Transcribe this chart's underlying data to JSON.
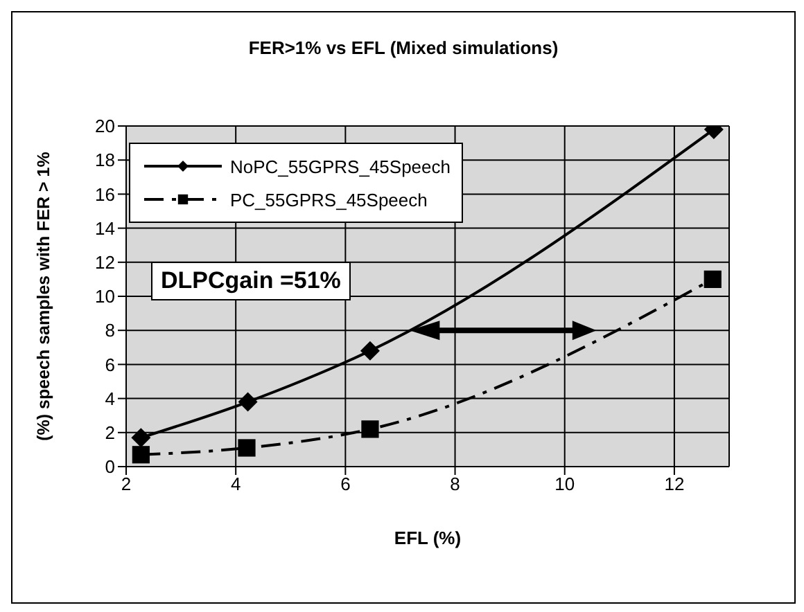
{
  "chart_data": {
    "type": "line",
    "title": "FER>1% vs EFL (Mixed simulations)",
    "xlabel": "EFL (%)",
    "ylabel": "(%) speech samples with FER > 1%",
    "series": [
      {
        "name": "NoPC_55GPRS_45Speech",
        "color": "#000000",
        "marker": "diamond",
        "line_style": "solid",
        "x": [
          2.27,
          4.22,
          6.45,
          12.72
        ],
        "values": [
          1.7,
          3.8,
          6.8,
          19.8
        ]
      },
      {
        "name": "PC_55GPRS_45Speech",
        "color": "#000000",
        "marker": "square",
        "line_style": "dashed",
        "x": [
          2.27,
          4.2,
          6.45,
          12.7
        ],
        "values": [
          0.7,
          1.1,
          2.2,
          11.0
        ]
      }
    ],
    "xlim": [
      2,
      13
    ],
    "xticks": [
      2,
      4,
      6,
      8,
      10,
      12
    ],
    "ylim": [
      0,
      20
    ],
    "yticks": [
      0,
      2,
      4,
      6,
      8,
      10,
      12,
      14,
      16,
      18,
      20
    ],
    "grid": true,
    "legend": "top left",
    "annotations": [
      "DLPCgain =51%"
    ]
  }
}
